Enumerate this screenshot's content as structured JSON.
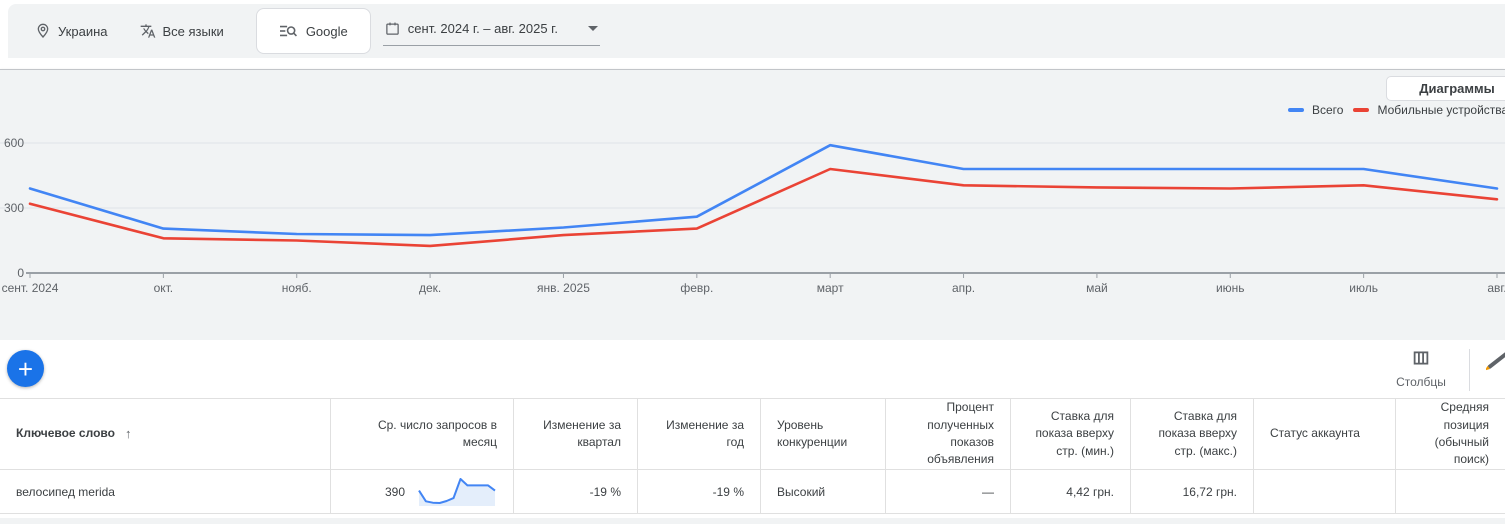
{
  "filter_bar": {
    "location": "Украина",
    "languages": "Все языки",
    "network": "Google",
    "date_range": "сент. 2024 г. – авг. 2025 г."
  },
  "chart_section": {
    "charts_button_label": "Диаграммы"
  },
  "chart_data": {
    "type": "line",
    "x": [
      "сент. 2024",
      "окт.",
      "нояб.",
      "дек.",
      "янв. 2025",
      "февр.",
      "март",
      "апр.",
      "май",
      "июнь",
      "июль",
      "авг."
    ],
    "series": [
      {
        "name": "Всего",
        "color": "#4285f4",
        "values": [
          390,
          205,
          180,
          175,
          210,
          260,
          590,
          480,
          480,
          480,
          480,
          390
        ]
      },
      {
        "name": "Мобильные устройства",
        "color": "#ea4335",
        "values": [
          320,
          160,
          150,
          125,
          175,
          205,
          480,
          405,
          395,
          390,
          405,
          340
        ]
      }
    ],
    "title": "",
    "xlabel": "",
    "ylabel": "",
    "ylim": [
      0,
      600
    ],
    "yticks": [
      0,
      300,
      600
    ],
    "grid": "horizontal",
    "legend_position": "top-right"
  },
  "toolbar": {
    "add_button": "+",
    "columns_label": "Столбцы"
  },
  "table": {
    "columns": [
      {
        "key": "keyword",
        "label": "Ключевое слово",
        "align": "left",
        "sort": "asc"
      },
      {
        "key": "avg_monthly_searches",
        "label": "Ср. число запросов в месяц",
        "align": "right"
      },
      {
        "key": "qoq_change",
        "label": "Изменение за квартал",
        "align": "right"
      },
      {
        "key": "yoy_change",
        "label": "Изменение за год",
        "align": "right"
      },
      {
        "key": "competition",
        "label": "Уровень конкуренции",
        "align": "left"
      },
      {
        "key": "ad_impression_share",
        "label": "Процент полученных показов объявления",
        "align": "right"
      },
      {
        "key": "top_bid_low",
        "label": "Ставка для показа вверху стр. (мин.)",
        "align": "right"
      },
      {
        "key": "top_bid_high",
        "label": "Ставка для показа вверху стр. (макс.)",
        "align": "right"
      },
      {
        "key": "account_status",
        "label": "Статус аккаунта",
        "align": "left"
      },
      {
        "key": "avg_position",
        "label": "Средняя позиция (обычный поиск)",
        "align": "right"
      }
    ],
    "rows": [
      {
        "keyword": "велосипед merida",
        "avg_monthly_searches": "390",
        "qoq_change": "-19 %",
        "yoy_change": "-19 %",
        "competition": "Высокий",
        "ad_impression_share": "—",
        "top_bid_low": "4,42 грн.",
        "top_bid_high": "16,72 грн.",
        "account_status": "",
        "avg_position": ""
      }
    ]
  }
}
